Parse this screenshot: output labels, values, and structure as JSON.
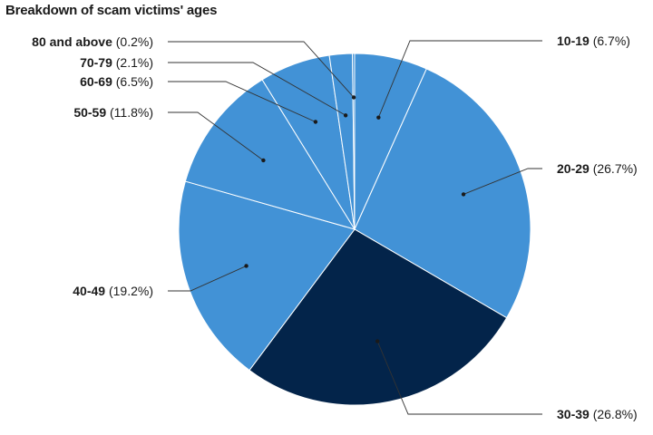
{
  "chart_data": {
    "type": "pie",
    "title": "Breakdown of scam victims' ages",
    "slices": [
      {
        "label": "10-19",
        "value": 6.7,
        "value_label": "(6.7%)",
        "color": "#4292d6"
      },
      {
        "label": "20-29",
        "value": 26.7,
        "value_label": "(26.7%)",
        "color": "#4292d6"
      },
      {
        "label": "30-39",
        "value": 26.8,
        "value_label": "(26.8%)",
        "color": "#03244a"
      },
      {
        "label": "40-49",
        "value": 19.2,
        "value_label": "(19.2%)",
        "color": "#4292d6"
      },
      {
        "label": "50-59",
        "value": 11.8,
        "value_label": "(11.8%)",
        "color": "#4292d6"
      },
      {
        "label": "60-69",
        "value": 6.5,
        "value_label": "(6.5%)",
        "color": "#4292d6"
      },
      {
        "label": "70-79",
        "value": 2.1,
        "value_label": "(2.1%)",
        "color": "#4292d6"
      },
      {
        "label": "80 and above",
        "value": 0.2,
        "value_label": "(0.2%)",
        "color": "#4292d6"
      }
    ],
    "start_angle": "12 o'clock",
    "direction": "clockwise",
    "legend": "none (callout labels)"
  }
}
